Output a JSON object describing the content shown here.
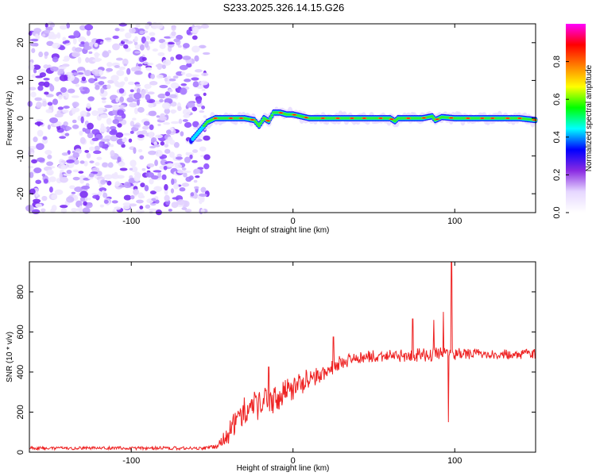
{
  "title": "S233.2025.326.14.15.G26",
  "chart_data": [
    {
      "type": "heatmap",
      "xlabel": "Height of straight line (km)",
      "ylabel": "Frequency (Hz)",
      "xlim": [
        -163,
        150
      ],
      "ylim": [
        -25,
        25
      ],
      "xticks": [
        -100,
        0,
        100
      ],
      "yticks": [
        -20,
        -10,
        0,
        10,
        20
      ],
      "noise_region_x": [
        -163,
        -53
      ],
      "signal_ridge": {
        "x": [
          -63,
          -58,
          -53,
          -48,
          -40,
          -30,
          -24,
          -21,
          -18,
          -15,
          -12,
          -8,
          -4,
          0,
          10,
          20,
          40,
          60,
          63,
          65,
          80,
          86,
          88,
          92,
          100,
          110,
          120,
          130,
          140,
          150
        ],
        "freq": [
          -6,
          -3.5,
          -1,
          0,
          0,
          0,
          -0.5,
          -2,
          0,
          -0.8,
          1.5,
          1.5,
          1,
          1,
          0,
          0,
          0,
          0,
          -0.8,
          0,
          0,
          0.5,
          -0.5,
          0.3,
          0,
          0,
          0,
          0,
          0,
          -0.5
        ]
      },
      "colorbar": {
        "label": "Normalized spectral amplitude",
        "ticks": [
          "0.0",
          "0.2",
          "0.4",
          "0.6",
          "0.8"
        ],
        "tick_values": [
          0.0,
          0.2,
          0.4,
          0.6,
          0.8
        ],
        "range": [
          0,
          1
        ],
        "colormap": [
          "#ffffff",
          "#e6d7ff",
          "#8a2be2",
          "#0000ff",
          "#00ffff",
          "#00ff00",
          "#ffff00",
          "#ff8000",
          "#ff0000",
          "#ff00ff"
        ]
      }
    },
    {
      "type": "line",
      "xlabel": "Height of straight line (km)",
      "ylabel": "SNR (10 * v/v)",
      "xlim": [
        -163,
        150
      ],
      "ylim": [
        0,
        950
      ],
      "xticks": [
        -100,
        0,
        100
      ],
      "yticks": [
        0,
        200,
        400,
        600,
        800
      ],
      "line_color": "#ee2222",
      "envelope": {
        "x": [
          -163,
          -120,
          -80,
          -55,
          -47,
          -40,
          -35,
          -30,
          -20,
          -10,
          0,
          10,
          20,
          25,
          30,
          40,
          50,
          60,
          80,
          90,
          100,
          120,
          150
        ],
        "mean": [
          20,
          20,
          20,
          20,
          28,
          90,
          160,
          210,
          240,
          270,
          320,
          370,
          400,
          430,
          450,
          470,
          480,
          480,
          485,
          490,
          490,
          490,
          490
        ],
        "noise": [
          8,
          8,
          8,
          8,
          12,
          50,
          60,
          70,
          75,
          70,
          60,
          55,
          45,
          40,
          35,
          30,
          30,
          30,
          35,
          35,
          30,
          25,
          25
        ]
      },
      "spikes": [
        {
          "x": -15,
          "value": 425
        },
        {
          "x": 25,
          "value": 575
        },
        {
          "x": 74,
          "value": 665
        },
        {
          "x": 87,
          "value": 660
        },
        {
          "x": 93,
          "value": 700
        },
        {
          "x": 98,
          "value": 950
        },
        {
          "x": 96,
          "value": 150
        }
      ]
    }
  ]
}
